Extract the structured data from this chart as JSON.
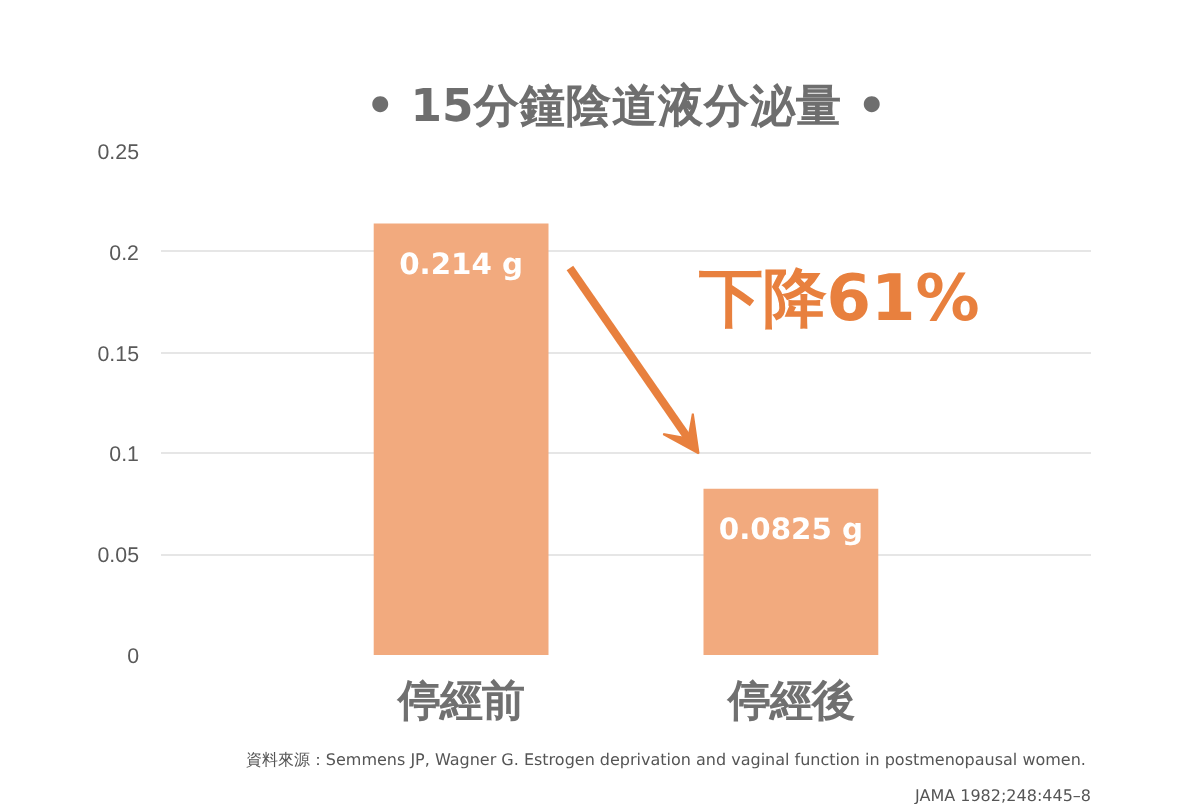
{
  "chart_data": {
    "type": "bar",
    "title": "• 15分鐘陰道液分泌量 •",
    "categories": [
      "停經前",
      "停經後"
    ],
    "values": [
      0.214,
      0.0825
    ],
    "color": "#f2aa7e",
    "value_labels": [
      "0.214 g",
      "0.0825 g"
    ],
    "ylim": [
      0,
      0.25
    ],
    "yticks": [
      0,
      0.05,
      0.1,
      0.15,
      0.2,
      0.25
    ],
    "grid": "y",
    "annotations": [
      "下降61%",
      "資料來源：Semmens  JP, Wagner G. Estrogen deprivation and vaginal function in postmenopausal women.",
      "JAMA 1982;248:445–8"
    ]
  }
}
